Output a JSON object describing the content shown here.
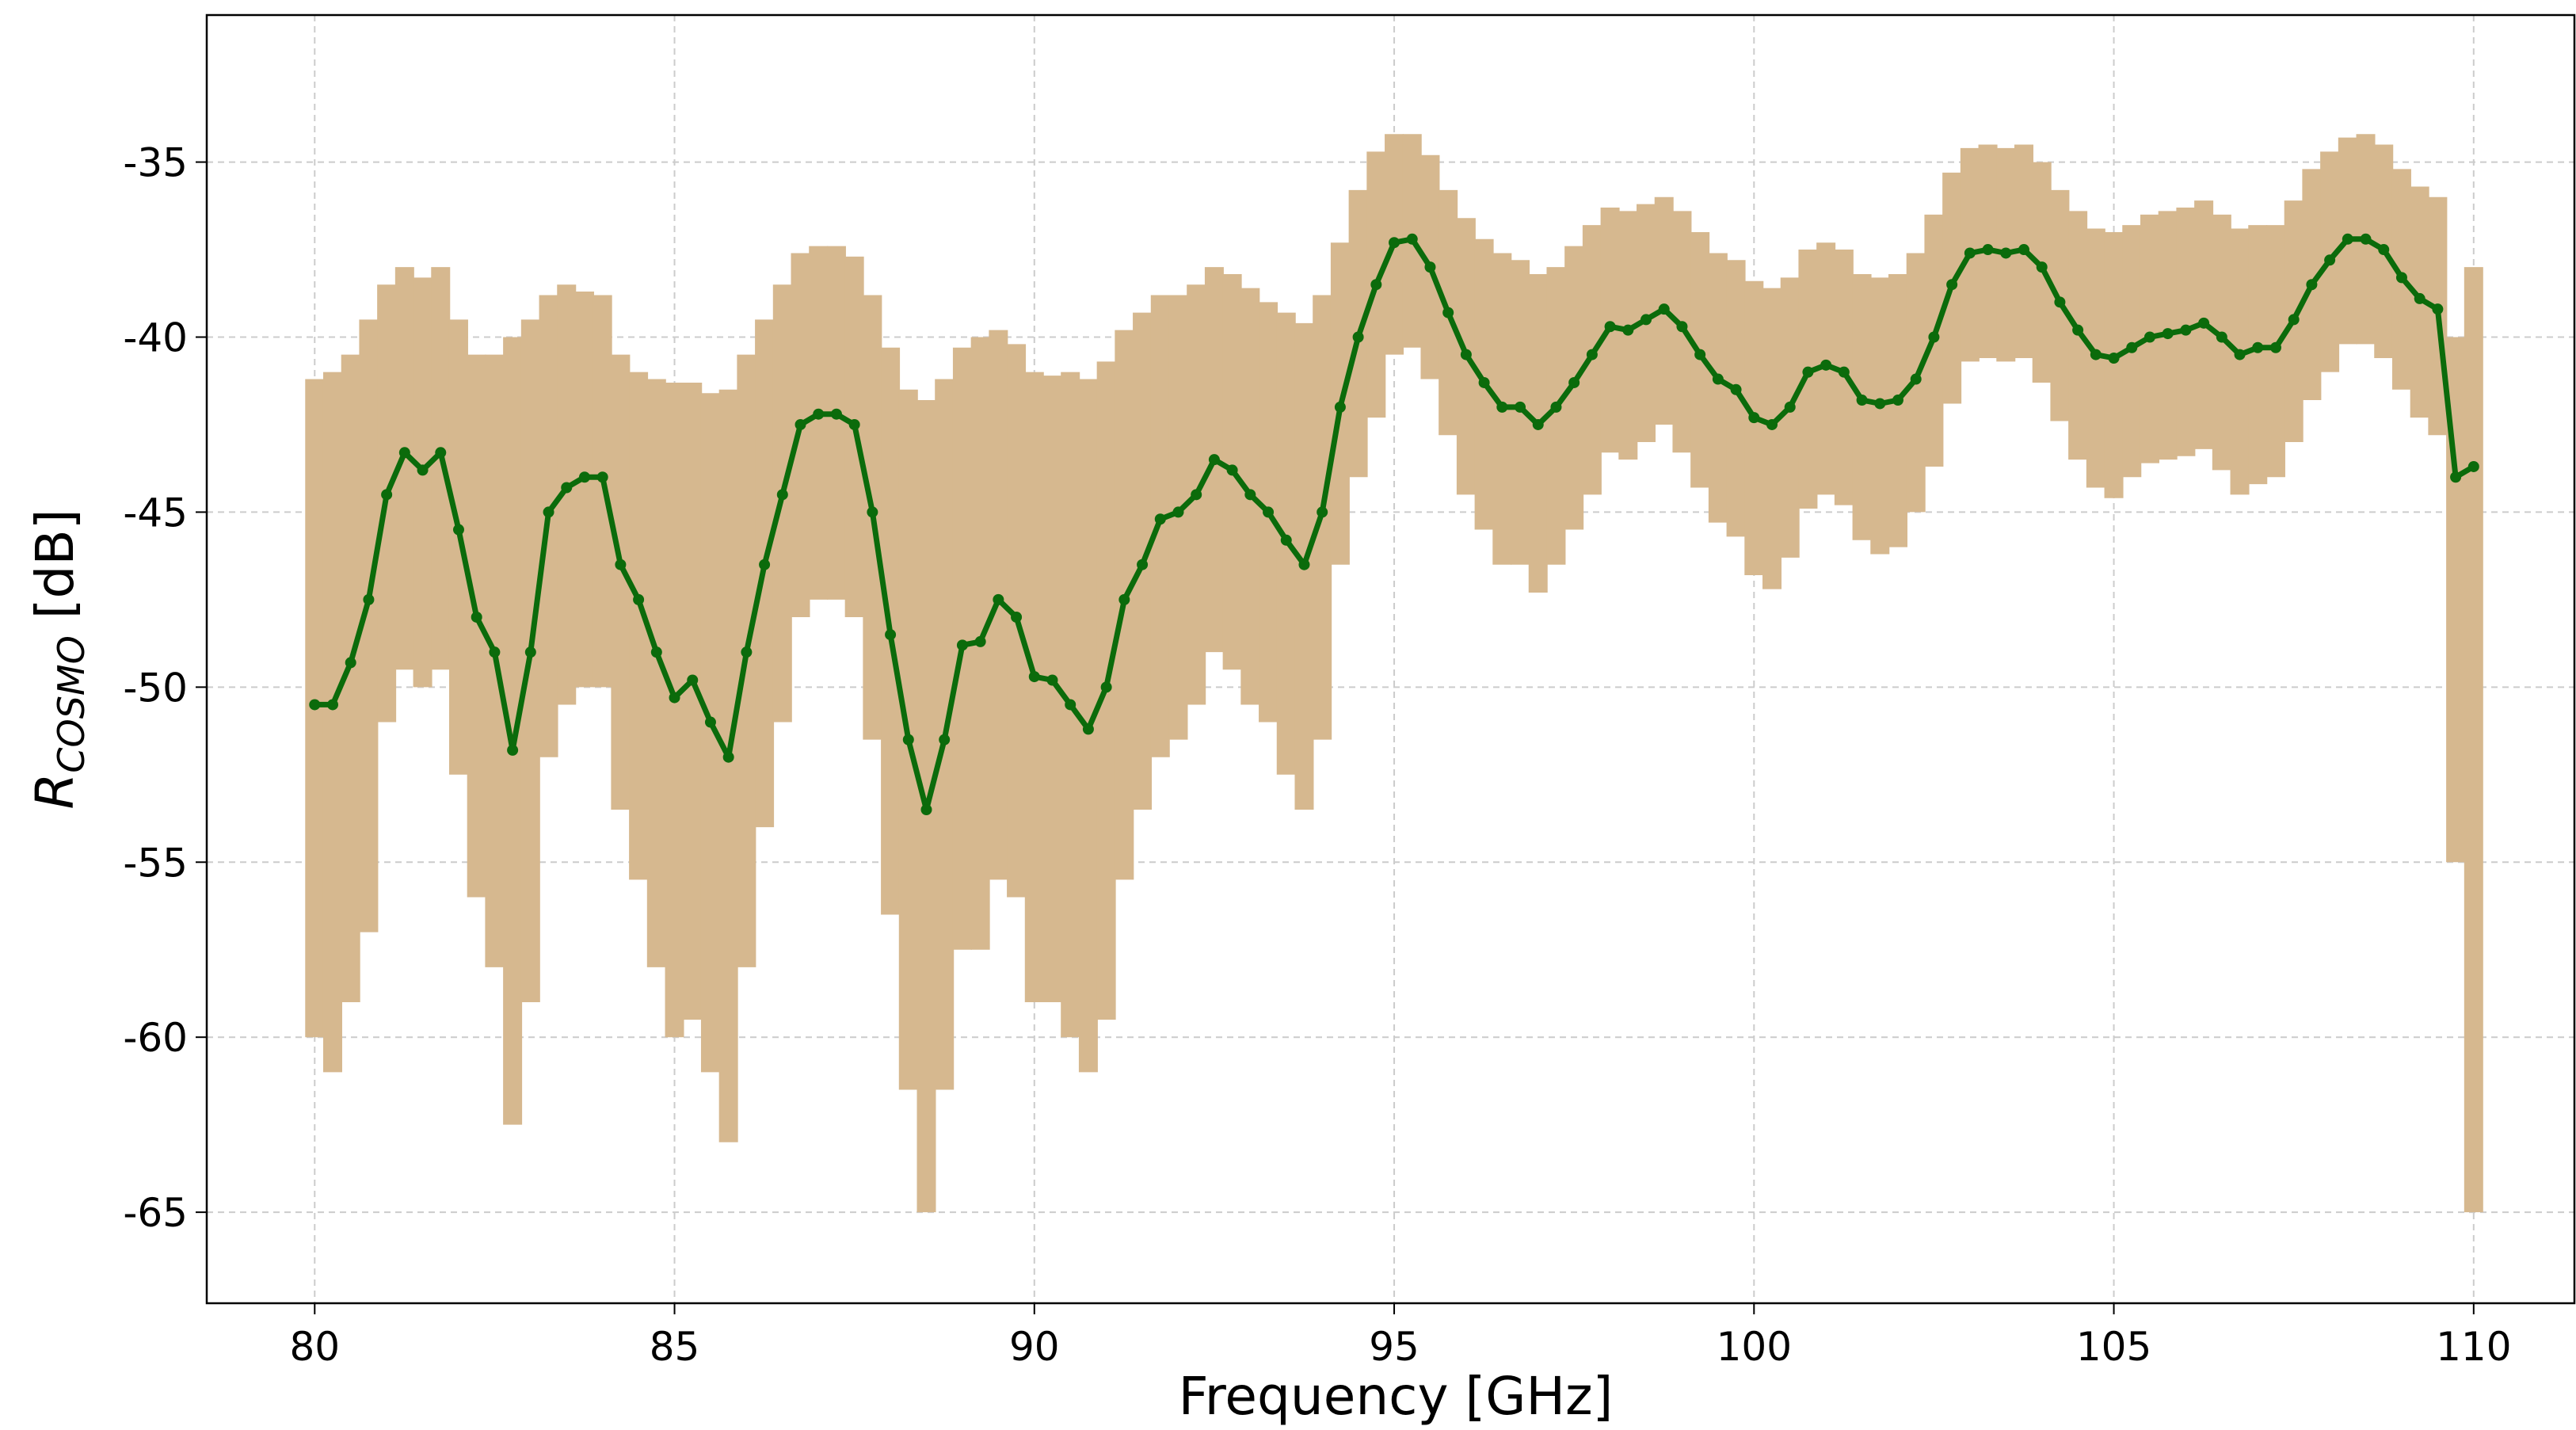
{
  "chart_data": {
    "type": "line_band",
    "x_label": "Frequency [GHz]",
    "y_label": {
      "text": "R",
      "subscript": "COSMO",
      "suffix": " [dB]"
    },
    "xlim": [
      78.5,
      111.4
    ],
    "ylim": [
      -67.6,
      -30.8
    ],
    "xticks": [
      80,
      85,
      90,
      95,
      100,
      105,
      110
    ],
    "yticks": [
      -65,
      -60,
      -55,
      -50,
      -45,
      -40,
      -35
    ],
    "grid": true,
    "x": [
      80,
      80.25,
      80.5,
      80.75,
      81,
      81.25,
      81.5,
      81.75,
      82,
      82.25,
      82.5,
      82.75,
      83,
      83.25,
      83.5,
      83.75,
      84,
      84.25,
      84.5,
      84.75,
      85,
      85.25,
      85.5,
      85.75,
      86,
      86.25,
      86.5,
      86.75,
      87,
      87.25,
      87.5,
      87.75,
      88,
      88.25,
      88.5,
      88.75,
      89,
      89.25,
      89.5,
      89.75,
      90,
      90.25,
      90.5,
      90.75,
      91,
      91.25,
      91.5,
      91.75,
      92,
      92.25,
      92.5,
      92.75,
      93,
      93.25,
      93.5,
      93.75,
      94,
      94.25,
      94.5,
      94.75,
      95,
      95.25,
      95.5,
      95.75,
      96,
      96.25,
      96.5,
      96.75,
      97,
      97.25,
      97.5,
      97.75,
      98,
      98.25,
      98.5,
      98.75,
      99,
      99.25,
      99.5,
      99.75,
      100,
      100.25,
      100.5,
      100.75,
      101,
      101.25,
      101.5,
      101.75,
      102,
      102.25,
      102.5,
      102.75,
      103,
      103.25,
      103.5,
      103.75,
      104,
      104.25,
      104.5,
      104.75,
      105,
      105.25,
      105.5,
      105.75,
      106,
      106.25,
      106.5,
      106.75,
      107,
      107.25,
      107.5,
      107.75,
      108,
      108.25,
      108.5,
      108.75,
      109,
      109.25,
      109.5,
      109.75,
      110
    ],
    "series": [
      {
        "color": "#0b6b0b",
        "band_color": "#d6b88f",
        "values": [
          -50.5,
          -50.5,
          -49.3,
          -47.5,
          -44.5,
          -43.3,
          -43.8,
          -43.3,
          -45.5,
          -48,
          -49,
          -51.8,
          -49,
          -45,
          -44.3,
          -44,
          -44,
          -46.5,
          -47.5,
          -49,
          -50.3,
          -49.8,
          -51,
          -52,
          -49,
          -46.5,
          -44.5,
          -42.5,
          -42.2,
          -42.2,
          -42.5,
          -45,
          -48.5,
          -51.5,
          -53.5,
          -51.5,
          -48.8,
          -48.7,
          -47.5,
          -48,
          -49.7,
          -49.8,
          -50.5,
          -51.2,
          -50,
          -47.5,
          -46.5,
          -45.2,
          -45,
          -44.5,
          -43.5,
          -43.8,
          -44.5,
          -45,
          -45.8,
          -46.5,
          -45,
          -42,
          -40,
          -38.5,
          -37.3,
          -37.2,
          -38,
          -39.3,
          -40.5,
          -41.3,
          -42,
          -42,
          -42.5,
          -42,
          -41.3,
          -40.5,
          -39.7,
          -39.8,
          -39.5,
          -39.2,
          -39.7,
          -40.5,
          -41.2,
          -41.5,
          -42.3,
          -42.5,
          -42,
          -41,
          -40.8,
          -41,
          -41.8,
          -41.9,
          -41.8,
          -41.2,
          -40,
          -38.5,
          -37.6,
          -37.5,
          -37.6,
          -37.5,
          -38,
          -39,
          -39.8,
          -40.5,
          -40.6,
          -40.3,
          -40,
          -39.9,
          -39.8,
          -39.6,
          -40,
          -40.5,
          -40.3,
          -40.3,
          -39.5,
          -38.5,
          -37.8,
          -37.2,
          -37.2,
          -37.5,
          -38.3,
          -38.9,
          -39.2,
          -44,
          -43.7
        ],
        "upper": [
          -41.2,
          -41,
          -40.5,
          -39.5,
          -38.5,
          -38,
          -38.3,
          -38,
          -39.5,
          -40.5,
          -40.5,
          -40,
          -39.5,
          -38.8,
          -38.5,
          -38.7,
          -38.8,
          -40.5,
          -41,
          -41.2,
          -41.3,
          -41.3,
          -41.6,
          -41.5,
          -40.5,
          -39.5,
          -38.5,
          -37.6,
          -37.4,
          -37.4,
          -37.7,
          -38.8,
          -40.3,
          -41.5,
          -41.8,
          -41.2,
          -40.3,
          -40,
          -39.8,
          -40.2,
          -41,
          -41.1,
          -41,
          -41.2,
          -40.7,
          -39.8,
          -39.3,
          -38.8,
          -38.8,
          -38.5,
          -38,
          -38.2,
          -38.6,
          -39,
          -39.3,
          -39.6,
          -38.8,
          -37.3,
          -35.8,
          -34.7,
          -34.2,
          -34.2,
          -34.8,
          -35.8,
          -36.6,
          -37.2,
          -37.6,
          -37.8,
          -38.2,
          -38,
          -37.4,
          -36.8,
          -36.3,
          -36.4,
          -36.2,
          -36,
          -36.4,
          -37,
          -37.6,
          -37.8,
          -38.4,
          -38.6,
          -38.3,
          -37.5,
          -37.3,
          -37.5,
          -38.2,
          -38.3,
          -38.2,
          -37.6,
          -36.5,
          -35.3,
          -34.6,
          -34.5,
          -34.6,
          -34.5,
          -35,
          -35.8,
          -36.4,
          -36.9,
          -37,
          -36.8,
          -36.5,
          -36.4,
          -36.3,
          -36.1,
          -36.5,
          -36.9,
          -36.8,
          -36.8,
          -36.1,
          -35.2,
          -34.7,
          -34.3,
          -34.2,
          -34.5,
          -35.2,
          -35.7,
          -36,
          -40,
          -38
        ],
        "lower": [
          -60,
          -61,
          -59,
          -57,
          -51,
          -49.5,
          -50,
          -49.5,
          -52.5,
          -56,
          -58,
          -62.5,
          -59,
          -52,
          -50.5,
          -50,
          -50,
          -53.5,
          -55.5,
          -58,
          -60,
          -59.5,
          -61,
          -63,
          -58,
          -54,
          -51,
          -48,
          -47.5,
          -47.5,
          -48,
          -51.5,
          -56.5,
          -61.5,
          -65,
          -61.5,
          -57.5,
          -57.5,
          -55.5,
          -56,
          -59,
          -59,
          -60,
          -61,
          -59.5,
          -55.5,
          -53.5,
          -52,
          -51.5,
          -50.5,
          -49,
          -49.5,
          -50.5,
          -51,
          -52.5,
          -53.5,
          -51.5,
          -46.5,
          -44,
          -42.3,
          -40.5,
          -40.3,
          -41.2,
          -42.8,
          -44.5,
          -45.5,
          -46.5,
          -46.5,
          -47.3,
          -46.5,
          -45.5,
          -44.5,
          -43.3,
          -43.5,
          -43,
          -42.5,
          -43.3,
          -44.3,
          -45.3,
          -45.7,
          -46.8,
          -47.2,
          -46.3,
          -44.9,
          -44.5,
          -44.8,
          -45.8,
          -46.2,
          -46,
          -45,
          -43.7,
          -41.9,
          -40.7,
          -40.6,
          -40.7,
          -40.6,
          -41.3,
          -42.4,
          -43.5,
          -44.3,
          -44.6,
          -44,
          -43.6,
          -43.5,
          -43.4,
          -43.2,
          -43.8,
          -44.5,
          -44.2,
          -44,
          -43,
          -41.8,
          -41,
          -40.2,
          -40.2,
          -40.6,
          -41.5,
          -42.3,
          -42.8,
          -55,
          -65
        ]
      }
    ]
  }
}
